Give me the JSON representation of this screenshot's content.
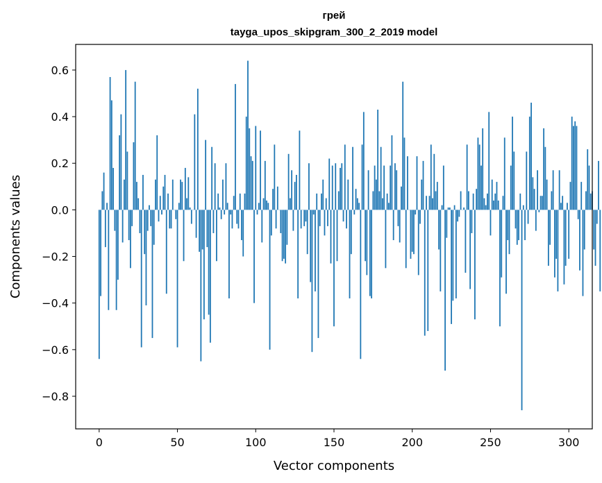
{
  "chart_data": {
    "type": "bar",
    "title": [
      "грей",
      "tayga_upos_skipgram_300_2_2019 model"
    ],
    "xlabel": "Vector components",
    "ylabel": "Components values",
    "xlim": [
      -15,
      315
    ],
    "ylim": [
      -0.94,
      0.71
    ],
    "xticks": [
      0,
      50,
      100,
      150,
      200,
      250,
      300
    ],
    "xtick_labels": [
      "0",
      "50",
      "100",
      "150",
      "200",
      "250",
      "300"
    ],
    "yticks": [
      -0.8,
      -0.6,
      -0.4,
      -0.2,
      0.0,
      0.2,
      0.4,
      0.6
    ],
    "ytick_labels": [
      "−0.8",
      "−0.6",
      "−0.4",
      "−0.2",
      "0.0",
      "0.2",
      "0.4",
      "0.6"
    ],
    "bar_color": "#1f77b4",
    "grid": false,
    "values": [
      -0.64,
      -0.37,
      0.08,
      0.16,
      -0.16,
      0.03,
      -0.43,
      0.57,
      0.47,
      0.18,
      -0.09,
      -0.43,
      -0.3,
      0.32,
      0.41,
      -0.14,
      0.13,
      0.6,
      0.25,
      -0.13,
      -0.25,
      -0.07,
      0.29,
      0.55,
      0.12,
      0.05,
      -0.1,
      -0.59,
      0.15,
      -0.19,
      -0.41,
      -0.09,
      0.02,
      -0.07,
      -0.55,
      -0.15,
      0.13,
      0.32,
      -0.05,
      0.06,
      -0.02,
      0.1,
      0.15,
      -0.36,
      0.07,
      -0.08,
      -0.08,
      0.13,
      0.0,
      -0.04,
      -0.59,
      0.03,
      0.13,
      0.12,
      -0.22,
      0.18,
      0.05,
      0.14,
      0.01,
      -0.06,
      0.0,
      0.41,
      -0.12,
      0.52,
      -0.18,
      -0.65,
      -0.17,
      -0.47,
      0.3,
      -0.16,
      -0.45,
      -0.57,
      0.27,
      -0.1,
      0.2,
      -0.22,
      0.07,
      0.01,
      -0.04,
      0.13,
      -0.02,
      0.2,
      0.03,
      -0.38,
      -0.02,
      -0.08,
      0.06,
      0.54,
      -0.06,
      -0.08,
      0.07,
      -0.13,
      -0.2,
      0.07,
      0.4,
      0.64,
      0.35,
      0.23,
      0.21,
      -0.4,
      0.36,
      -0.02,
      0.03,
      0.34,
      -0.14,
      0.05,
      0.21,
      0.04,
      0.03,
      -0.6,
      -0.11,
      0.09,
      0.28,
      -0.08,
      0.1,
      0.0,
      -0.1,
      -0.22,
      -0.21,
      -0.23,
      -0.15,
      0.24,
      0.05,
      0.17,
      -0.09,
      0.12,
      0.15,
      -0.38,
      0.34,
      -0.08,
      0.0,
      -0.07,
      -0.05,
      -0.19,
      0.2,
      -0.31,
      -0.61,
      -0.02,
      -0.35,
      0.07,
      -0.55,
      -0.07,
      0.07,
      0.13,
      -0.11,
      0.05,
      -0.07,
      0.22,
      -0.23,
      0.19,
      -0.5,
      0.2,
      -0.22,
      0.08,
      0.18,
      0.2,
      -0.05,
      0.28,
      -0.08,
      0.13,
      -0.38,
      -0.19,
      0.27,
      -0.02,
      0.09,
      0.05,
      0.03,
      -0.64,
      0.28,
      0.42,
      -0.22,
      -0.28,
      0.17,
      -0.37,
      -0.38,
      0.08,
      0.19,
      0.13,
      0.43,
      0.08,
      0.27,
      0.05,
      0.19,
      -0.25,
      0.07,
      0.03,
      0.19,
      0.32,
      -0.13,
      0.2,
      0.17,
      -0.07,
      -0.14,
      0.1,
      0.55,
      0.31,
      -0.25,
      0.23,
      0.0,
      -0.21,
      -0.18,
      -0.19,
      -0.02,
      0.23,
      -0.28,
      -0.06,
      0.13,
      0.21,
      -0.54,
      0.06,
      -0.52,
      0.06,
      0.28,
      0.05,
      0.24,
      0.08,
      0.12,
      -0.17,
      -0.35,
      0.02,
      0.19,
      -0.69,
      -0.12,
      0.01,
      0.01,
      -0.49,
      -0.39,
      0.02,
      -0.38,
      -0.05,
      -0.03,
      0.08,
      0.0,
      0.01,
      -0.27,
      0.28,
      0.08,
      -0.34,
      -0.1,
      0.07,
      -0.47,
      0.09,
      0.31,
      0.28,
      0.19,
      0.35,
      0.05,
      0.02,
      0.07,
      0.42,
      -0.11,
      0.13,
      0.04,
      0.07,
      0.12,
      0.04,
      -0.5,
      -0.29,
      0.06,
      0.31,
      -0.36,
      -0.13,
      -0.19,
      0.19,
      0.4,
      0.25,
      -0.08,
      -0.15,
      -0.13,
      0.07,
      -0.86,
      0.02,
      -0.13,
      0.25,
      -0.06,
      0.4,
      0.46,
      0.14,
      0.09,
      -0.09,
      0.17,
      -0.01,
      0.06,
      0.06,
      0.35,
      0.27,
      0.13,
      -0.24,
      -0.15,
      0.08,
      0.17,
      -0.29,
      -0.21,
      -0.35,
      0.17,
      0.03,
      0.06,
      -0.32,
      -0.24,
      0.03,
      -0.21,
      0.12,
      0.4,
      0.36,
      0.38,
      0.36,
      -0.04,
      -0.26,
      0.12,
      -0.37,
      -0.17,
      0.08,
      0.26,
      0.19,
      0.07,
      0.08,
      -0.17,
      -0.24,
      -0.06,
      0.21,
      -0.35
    ]
  }
}
